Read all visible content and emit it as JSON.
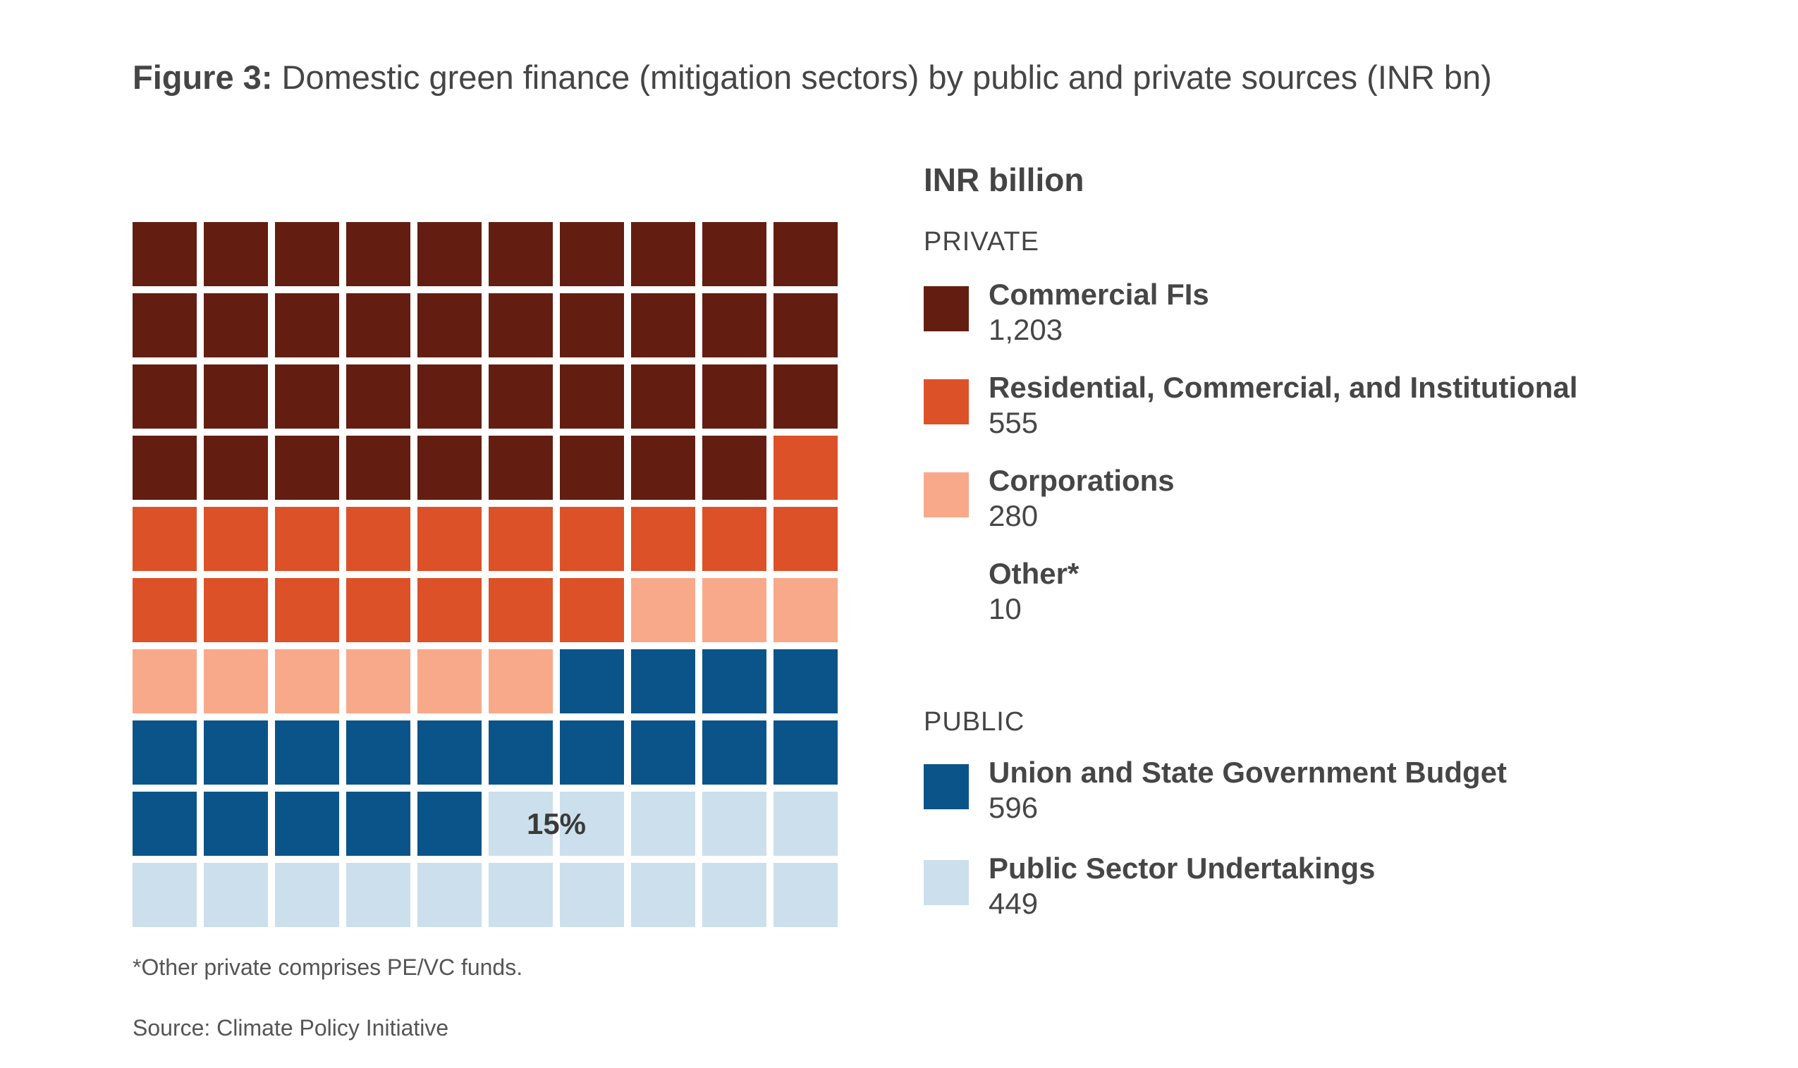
{
  "figure": {
    "label": "Figure 3:",
    "title": "Domestic green finance (mitigation sectors) by public and private sources (INR bn)",
    "footnote": "*Other private comprises PE/VC funds.",
    "source": "Source: Climate Policy Initiative"
  },
  "legend": {
    "unit_title": "INR billion",
    "groups": [
      {
        "label": "PRIVATE",
        "items": [
          {
            "name": "Commercial FIs",
            "value": "1,203",
            "color": "#641E11"
          },
          {
            "name": "Residential, Commercial, and Institutional",
            "value": "555",
            "color": "#DC5128"
          },
          {
            "name": "Corporations",
            "value": "280",
            "color": "#F8A98A"
          },
          {
            "name": "Other*",
            "value": "10",
            "color": "#FFFFFF"
          }
        ]
      },
      {
        "label": "PUBLIC",
        "items": [
          {
            "name": "Union and State Government Budget",
            "value": "596",
            "color": "#0B5489"
          },
          {
            "name": "Public Sector Undertakings",
            "value": "449",
            "color": "#CCDFEC"
          }
        ]
      }
    ]
  },
  "chart_data": {
    "type": "waffle",
    "grid": {
      "rows": 10,
      "columns": 10
    },
    "unit": "INR billion",
    "categories": [
      "Commercial FIs",
      "Residential, Commercial, and Institutional",
      "Corporations",
      "Other*",
      "Union and State Government Budget",
      "Public Sector Undertakings"
    ],
    "values": [
      1203,
      555,
      280,
      10,
      596,
      449
    ],
    "cells": [
      39,
      18,
      9,
      0,
      19,
      15
    ],
    "colors": [
      "#641E11",
      "#DC5128",
      "#F8A98A",
      "#FFFFFF",
      "#0B5489",
      "#CCDFEC"
    ],
    "annotations": [
      {
        "text": "15%",
        "category": "Public Sector Undertakings"
      }
    ]
  }
}
